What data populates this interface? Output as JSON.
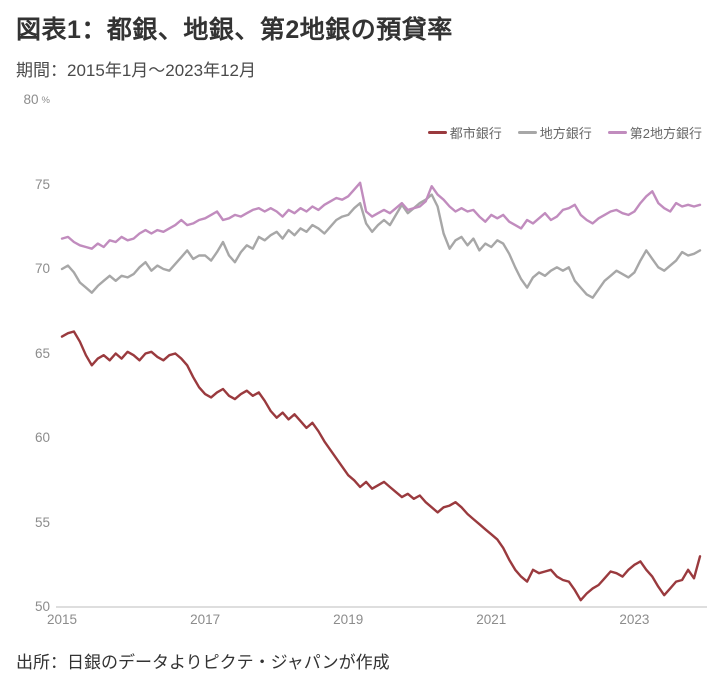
{
  "header": {
    "title": "図表1：都銀、地銀、第2地銀の預貸率",
    "subtitle": "期間：2015年1月～2023年12月"
  },
  "footer": {
    "source": "出所：日銀のデータよりピクテ・ジャパンが作成"
  },
  "chart_data": {
    "type": "line",
    "title": "図表1：都銀、地銀、第2地銀の預貸率",
    "period_label": "期間：2015年1月～2023年12月",
    "unit": "%",
    "ylim": [
      50,
      80
    ],
    "yticks": [
      80,
      75,
      70,
      65,
      60,
      55,
      50
    ],
    "xticks": [
      2015,
      2017,
      2019,
      2021,
      2023
    ],
    "x_start": "2015-01",
    "x_end": "2023-12",
    "x_frequency": "monthly",
    "grid": false,
    "legend_position": "top-right",
    "axis_color": "#c9c9c9",
    "series": [
      {
        "name": "都市銀行",
        "color": "#9a3a3e",
        "values": [
          66.0,
          66.2,
          66.3,
          65.7,
          64.9,
          64.3,
          64.7,
          64.9,
          64.6,
          65.0,
          64.7,
          65.1,
          64.9,
          64.6,
          65.0,
          65.1,
          64.8,
          64.6,
          64.9,
          65.0,
          64.7,
          64.3,
          63.6,
          63.0,
          62.6,
          62.4,
          62.7,
          62.9,
          62.5,
          62.3,
          62.6,
          62.8,
          62.5,
          62.7,
          62.2,
          61.6,
          61.2,
          61.5,
          61.1,
          61.4,
          61.0,
          60.6,
          60.9,
          60.4,
          59.8,
          59.3,
          58.8,
          58.3,
          57.8,
          57.5,
          57.1,
          57.4,
          57.0,
          57.2,
          57.4,
          57.1,
          56.8,
          56.5,
          56.7,
          56.4,
          56.6,
          56.2,
          55.9,
          55.6,
          55.9,
          56.0,
          56.2,
          55.9,
          55.5,
          55.2,
          54.9,
          54.6,
          54.3,
          54.0,
          53.5,
          52.8,
          52.2,
          51.8,
          51.5,
          52.2,
          52.0,
          52.1,
          52.2,
          51.8,
          51.6,
          51.5,
          51.0,
          50.4,
          50.8,
          51.1,
          51.3,
          51.7,
          52.1,
          52.0,
          51.8,
          52.2,
          52.5,
          52.7,
          52.2,
          51.8,
          51.2,
          50.7,
          51.1,
          51.5,
          51.6,
          52.2,
          51.7,
          53.0
        ]
      },
      {
        "name": "地方銀行",
        "color": "#a7a7a7",
        "values": [
          70.0,
          70.2,
          69.8,
          69.2,
          68.9,
          68.6,
          69.0,
          69.3,
          69.6,
          69.3,
          69.6,
          69.5,
          69.7,
          70.1,
          70.4,
          69.9,
          70.2,
          70.0,
          69.9,
          70.3,
          70.7,
          71.1,
          70.6,
          70.8,
          70.8,
          70.5,
          71.0,
          71.6,
          70.8,
          70.4,
          71.0,
          71.4,
          71.2,
          71.9,
          71.7,
          72.0,
          72.2,
          71.8,
          72.3,
          72.0,
          72.4,
          72.2,
          72.6,
          72.4,
          72.1,
          72.5,
          72.9,
          73.1,
          73.2,
          73.6,
          73.9,
          72.7,
          72.2,
          72.6,
          72.9,
          72.6,
          73.2,
          73.8,
          73.3,
          73.6,
          73.9,
          74.1,
          74.4,
          73.7,
          72.1,
          71.2,
          71.7,
          71.9,
          71.4,
          71.8,
          71.1,
          71.5,
          71.3,
          71.7,
          71.5,
          70.9,
          70.1,
          69.4,
          68.9,
          69.5,
          69.8,
          69.6,
          69.9,
          70.1,
          69.9,
          70.1,
          69.3,
          68.9,
          68.5,
          68.3,
          68.8,
          69.3,
          69.6,
          69.9,
          69.7,
          69.5,
          69.8,
          70.5,
          71.1,
          70.6,
          70.1,
          69.9,
          70.2,
          70.5,
          71.0,
          70.8,
          70.9,
          71.1
        ]
      },
      {
        "name": "第2地方銀行",
        "color": "#c18cbe",
        "values": [
          71.8,
          71.9,
          71.6,
          71.4,
          71.3,
          71.2,
          71.5,
          71.3,
          71.7,
          71.6,
          71.9,
          71.7,
          71.8,
          72.1,
          72.3,
          72.1,
          72.3,
          72.2,
          72.4,
          72.6,
          72.9,
          72.6,
          72.7,
          72.9,
          73.0,
          73.2,
          73.4,
          72.9,
          73.0,
          73.2,
          73.1,
          73.3,
          73.5,
          73.6,
          73.4,
          73.6,
          73.4,
          73.1,
          73.5,
          73.3,
          73.6,
          73.4,
          73.7,
          73.5,
          73.8,
          74.0,
          74.2,
          74.1,
          74.3,
          74.7,
          75.1,
          73.4,
          73.1,
          73.3,
          73.5,
          73.3,
          73.6,
          73.9,
          73.5,
          73.6,
          73.7,
          74.0,
          74.9,
          74.4,
          74.1,
          73.7,
          73.4,
          73.6,
          73.4,
          73.5,
          73.1,
          72.8,
          73.2,
          73.0,
          73.2,
          72.8,
          72.6,
          72.4,
          72.9,
          72.7,
          73.0,
          73.3,
          72.9,
          73.1,
          73.5,
          73.6,
          73.8,
          73.2,
          72.9,
          72.7,
          73.0,
          73.2,
          73.4,
          73.5,
          73.3,
          73.2,
          73.4,
          73.9,
          74.3,
          74.6,
          73.9,
          73.6,
          73.4,
          73.9,
          73.7,
          73.8,
          73.7,
          73.8
        ]
      }
    ]
  }
}
